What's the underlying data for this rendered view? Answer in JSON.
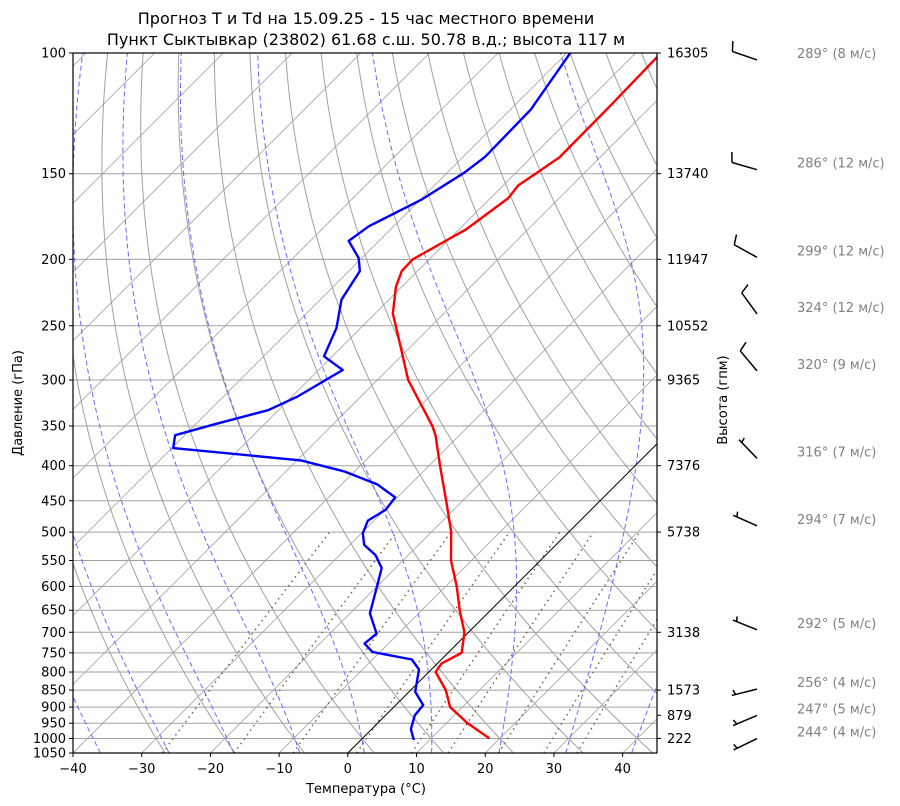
{
  "chart_data": {
    "type": "line",
    "subtype": "skew-t log-p diagram",
    "title": [
      "Прогноз T и Td на 15.09.25 - 15 час местного времени",
      "Пункт Сыктывкар (23802) 61.68 с.ш. 50.78 в.д.; высота 117 м"
    ],
    "xlabel": "Температура (°C)",
    "ylabel": "Давление (гПа)",
    "ylabel_right": "Высота (гпм)",
    "xlim": [
      -40,
      45
    ],
    "ylim": [
      1050,
      100
    ],
    "x_ticks": [
      -40,
      -30,
      -20,
      -10,
      0,
      10,
      20,
      30,
      40
    ],
    "y_ticks": [
      100,
      150,
      200,
      250,
      300,
      350,
      400,
      450,
      500,
      550,
      600,
      650,
      700,
      750,
      800,
      850,
      900,
      950,
      1000,
      1050
    ],
    "height_ticks": [
      {
        "p": 100,
        "label": "16305"
      },
      {
        "p": 150,
        "label": "13740"
      },
      {
        "p": 200,
        "label": "11947"
      },
      {
        "p": 250,
        "label": "10552"
      },
      {
        "p": 300,
        "label": "9365"
      },
      {
        "p": 400,
        "label": "7376"
      },
      {
        "p": 500,
        "label": "5738"
      },
      {
        "p": 700,
        "label": "3138"
      },
      {
        "p": 850,
        "label": "1573"
      },
      {
        "p": 925,
        "label": "879"
      },
      {
        "p": 1000,
        "label": "222"
      }
    ],
    "series": [
      {
        "name": "T",
        "color": "#ff0000",
        "p": [
          1000,
          950,
          900,
          850,
          800,
          777,
          750,
          700,
          650,
          600,
          550,
          500,
          450,
          400,
          361,
          350,
          300,
          250,
          240,
          219,
          208,
          200,
          181,
          163,
          156,
          150,
          142,
          120,
          100
        ],
        "t": [
          18.5,
          13.1,
          8.2,
          5.1,
          1.0,
          0.6,
          2.0,
          -0.6,
          -4.5,
          -8.4,
          -13.0,
          -17.1,
          -22.4,
          -28.4,
          -33.5,
          -35.3,
          -45.5,
          -55.2,
          -57.4,
          -60.9,
          -62.3,
          -62.4,
          -59.0,
          -57.4,
          -57.8,
          -57.0,
          -55.9,
          -56.0,
          -56.3
        ]
      },
      {
        "name": "Td",
        "color": "#0000ff",
        "p": [
          1005,
          969,
          925,
          894,
          855,
          793,
          767,
          748,
          727,
          703,
          657,
          600,
          564,
          540,
          522,
          502,
          481,
          464,
          445,
          426,
          408,
          393,
          377,
          361,
          348,
          332,
          317,
          290,
          277,
          252,
          229,
          208,
          199,
          188,
          179,
          163.5,
          149.5,
          141.7,
          121,
          100
        ],
        "t": [
          7.7,
          5.7,
          4.25,
          4.0,
          0.9,
          -1.8,
          -4.3,
          -11.1,
          -13.5,
          -13.2,
          -17.1,
          -20.0,
          -22.0,
          -24.8,
          -27.9,
          -29.8,
          -30.9,
          -29.9,
          -30.3,
          -34.8,
          -41.4,
          -49.4,
          -69.8,
          -71.4,
          -67.2,
          -61.5,
          -59.2,
          -56.5,
          -61.2,
          -63.5,
          -66.9,
          -68.4,
          -70.5,
          -74.4,
          -73.6,
          -69.8,
          -67.5,
          -66.8,
          -67.0,
          -69.5
        ]
      }
    ],
    "reference_lines": {
      "isotherm_highlight_c": 0,
      "dry_adiabat_t0_c": [
        -30,
        200,
        10
      ],
      "moist_adiabat_t1050_c": [
        -36,
        -26,
        -16.6,
        -7,
        2.4,
        12.2,
        22,
        31.7,
        41.3
      ],
      "mixing_ratios": [
        0.0004,
        0.001,
        0.002,
        0.004,
        0.007,
        0.01,
        0.016,
        0.024,
        0.032
      ]
    },
    "wind": [
      {
        "p": 101,
        "dir": 289,
        "speed": 8,
        "label": "289° (8 м/с)"
      },
      {
        "p": 146,
        "dir": 286,
        "speed": 12,
        "label": "286° (12 м/с)"
      },
      {
        "p": 196,
        "dir": 299,
        "speed": 12,
        "label": "299° (12 м/с)"
      },
      {
        "p": 237,
        "dir": 324,
        "speed": 12,
        "label": "324° (12 м/с)"
      },
      {
        "p": 287,
        "dir": 320,
        "speed": 9,
        "label": "320° (9 м/с)"
      },
      {
        "p": 385,
        "dir": 316,
        "speed": 7,
        "label": "316° (7 м/с)"
      },
      {
        "p": 483,
        "dir": 294,
        "speed": 7,
        "label": "294° (7 м/с)"
      },
      {
        "p": 685,
        "dir": 292,
        "speed": 5,
        "label": "292° (5 м/с)"
      },
      {
        "p": 836,
        "dir": 256,
        "speed": 4,
        "label": "256° (4 м/с)"
      },
      {
        "p": 913,
        "dir": 247,
        "speed": 5,
        "label": "247° (5 м/с)"
      },
      {
        "p": 987,
        "dir": 244,
        "speed": 4,
        "label": "244° (4 м/с)"
      }
    ],
    "colors": {
      "temperature": "#ff0000",
      "dewpoint": "#0000ff",
      "dry_adiabat": "#a0a0a0",
      "moist_adiabat": "#6a6aff",
      "mixing_ratio": "#8b5a3c",
      "isotherm": "#000000",
      "wind_label": "#808080"
    }
  }
}
